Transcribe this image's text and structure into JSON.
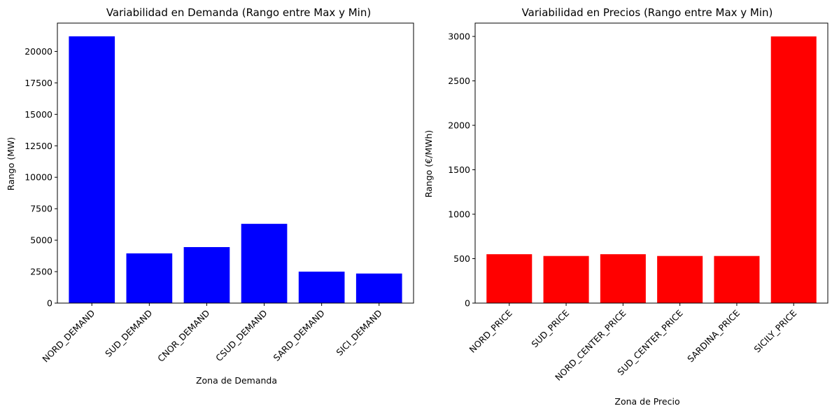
{
  "chart_data": [
    {
      "type": "bar",
      "title": "Variabilidad en Demanda (Rango entre Max y Min)",
      "xlabel": "Zona de Demanda",
      "ylabel": "Rango (MW)",
      "categories": [
        "NORD_DEMAND",
        "SUD_DEMAND",
        "CNOR_DEMAND",
        "CSUD_DEMAND",
        "SARD_DEMAND",
        "SICI_DEMAND"
      ],
      "values": [
        21200,
        3950,
        4450,
        6300,
        2500,
        2350
      ],
      "ylim": [
        0,
        22250
      ],
      "yticks": [
        0,
        2500,
        5000,
        7500,
        10000,
        12500,
        15000,
        17500,
        20000
      ],
      "color": "#0000ff",
      "grid": false,
      "legend": "none"
    },
    {
      "type": "bar",
      "title": "Variabilidad en Precios (Rango entre Max y Min)",
      "xlabel": "Zona de Precio",
      "ylabel": "Rango (€/MWh)",
      "categories": [
        "NORD_PRICE",
        "SUD_PRICE",
        "NORD_CENTER_PRICE",
        "SUD_CENTER_PRICE",
        "SARDINA_PRICE",
        "SICILY_PRICE"
      ],
      "values": [
        550,
        530,
        550,
        530,
        530,
        3000
      ],
      "ylim": [
        0,
        3150
      ],
      "yticks": [
        0,
        500,
        1000,
        1500,
        2000,
        2500,
        3000
      ],
      "color": "#ff0000",
      "grid": false,
      "legend": "none"
    }
  ]
}
